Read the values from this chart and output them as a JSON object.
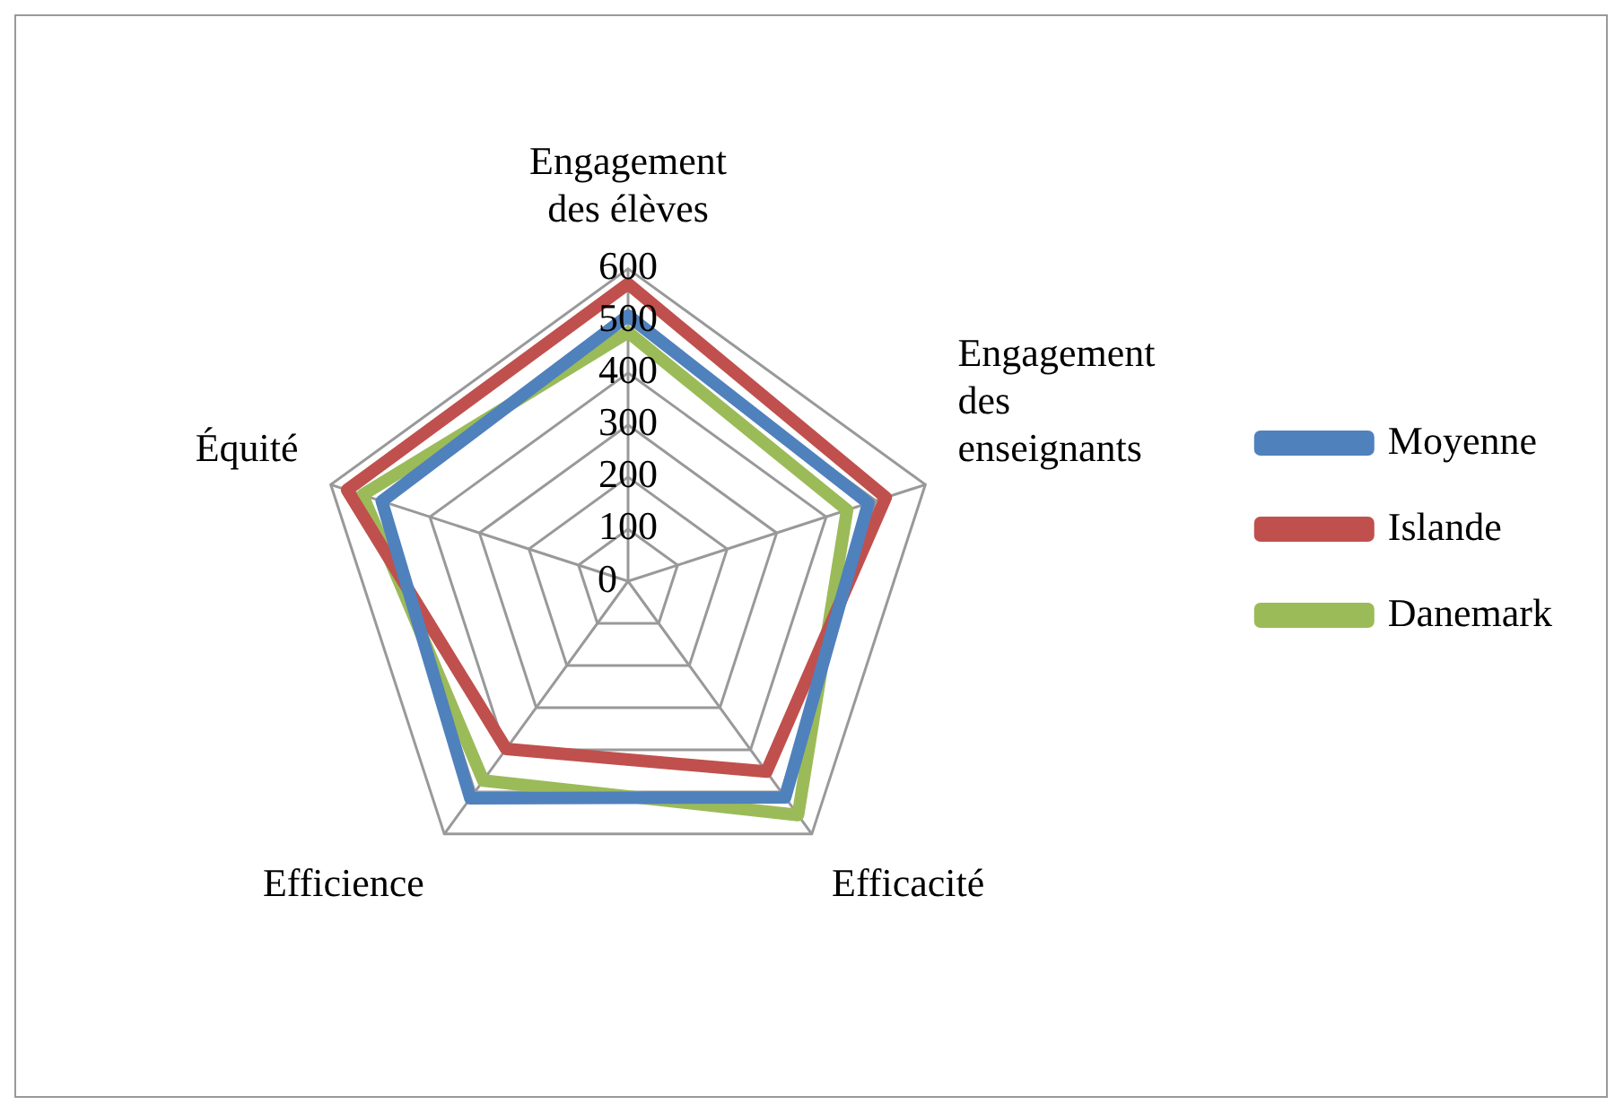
{
  "chart_data": {
    "type": "radar",
    "categories": [
      "Engagement des élèves",
      "Engagement des enseignants",
      "Efficacité",
      "Efficience",
      "Équité"
    ],
    "series": [
      {
        "name": "Moyenne",
        "color": "#4f81bd",
        "values": [
          510,
          485,
          513,
          515,
          497
        ]
      },
      {
        "name": "Islande",
        "color": "#c0504d",
        "values": [
          571,
          520,
          452,
          398,
          567
        ]
      },
      {
        "name": "Danemark",
        "color": "#9bbb59",
        "values": [
          478,
          442,
          555,
          473,
          536
        ]
      }
    ],
    "ylim": [
      0,
      600
    ],
    "yticks": [
      0,
      100,
      200,
      300,
      400,
      500,
      600
    ],
    "legend": "right",
    "marker": "none"
  }
}
